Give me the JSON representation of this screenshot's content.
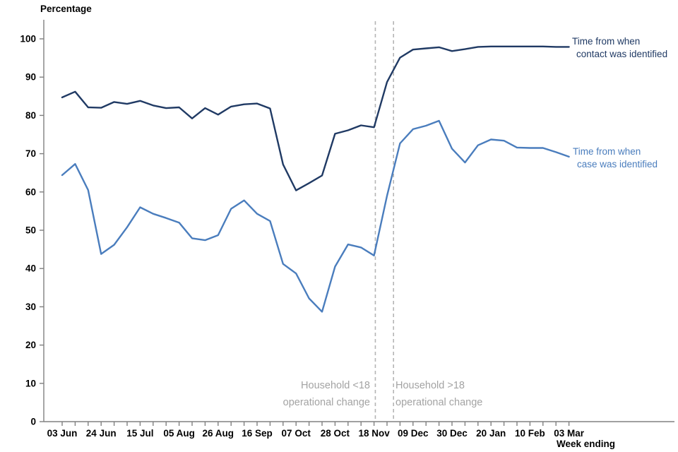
{
  "title": "Percentage",
  "x_axis_label": "Week ending",
  "colors": {
    "contact_series": "#203a64",
    "case_series": "#4a7dbd",
    "axis": "#808080",
    "tick_label": "#000000",
    "annotation_text": "#a3a3a3",
    "dashed_rule": "#b5b5b5",
    "background": "#ffffff"
  },
  "chart_data": {
    "type": "line",
    "title": "Percentage",
    "xlabel": "Week ending",
    "ylabel": "Percentage",
    "ylim": [
      0,
      100
    ],
    "y_tick_step": 10,
    "grid": false,
    "legend_position": "right-of-line-ends",
    "weeks_total": 40,
    "x_major_every": 3,
    "x_tick_labels": [
      "03 Jun",
      "24 Jun",
      "15 Jul",
      "05 Aug",
      "26 Aug",
      "16 Sep",
      "07 Oct",
      "28 Oct",
      "18 Nov",
      "09 Dec",
      "30 Dec",
      "20 Jan",
      "10 Feb",
      "03 Mar"
    ],
    "series": [
      {
        "name": "Time from when case was identified",
        "legend_lines": [
          "Time from when",
          "case was identified"
        ],
        "color": "#4a7dbd",
        "values": [
          64.4,
          67.3,
          60.5,
          43.8,
          46.2,
          50.8,
          56.0,
          54.3,
          53.2,
          52.0,
          47.9,
          47.4,
          48.7,
          55.6,
          57.8,
          54.3,
          52.4,
          41.2,
          38.7,
          32.2,
          28.7,
          40.5,
          46.3,
          45.5,
          43.4,
          59.0,
          72.7,
          76.4,
          77.3,
          78.6,
          71.3,
          67.7,
          72.2,
          73.7,
          73.4,
          71.6,
          71.5,
          71.5,
          70.4,
          69.2
        ]
      },
      {
        "name": "Time from when contact was identified",
        "legend_lines": [
          "Time from when",
          "contact was identified"
        ],
        "color": "#203a64",
        "values": [
          84.7,
          86.2,
          82.1,
          82.0,
          83.5,
          83.0,
          83.8,
          82.6,
          81.9,
          82.1,
          79.2,
          81.9,
          80.2,
          82.3,
          82.9,
          83.1,
          81.8,
          67.2,
          60.4,
          62.3,
          64.3,
          75.2,
          76.1,
          77.4,
          76.9,
          88.7,
          95.1,
          97.2,
          97.5,
          97.8,
          96.8,
          97.3,
          97.9,
          98.0,
          98.0,
          98.0,
          98.0,
          98.0,
          97.9,
          97.9
        ]
      }
    ],
    "vlines": [
      {
        "week": 24.1,
        "label_lines": [
          "Household <18",
          "operational change"
        ],
        "label_side": "left"
      },
      {
        "week": 25.5,
        "label_lines": [
          "Household >18",
          "operational change"
        ],
        "label_side": "right"
      }
    ]
  }
}
